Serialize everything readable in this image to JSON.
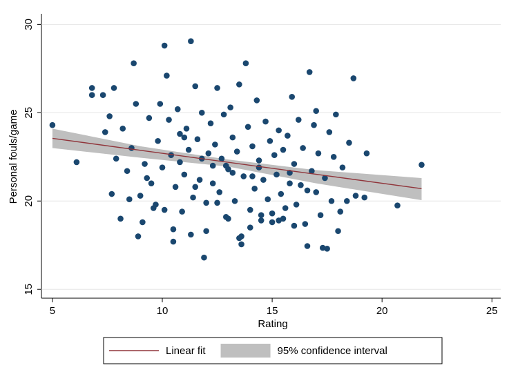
{
  "chart_data": {
    "type": "scatter",
    "xlabel": "Rating",
    "ylabel": "Personal fouls/game",
    "xlim": [
      4.5,
      25.4
    ],
    "ylim": [
      14.5,
      30.6
    ],
    "xticks": [
      5,
      10,
      15,
      20,
      25
    ],
    "yticks": [
      15,
      20,
      25,
      30
    ],
    "grid": true,
    "series": [
      {
        "color": "#1a476f",
        "x": [
          5.0,
          6.1,
          21.8,
          20.7,
          11.3,
          10.1,
          8.7,
          13.8,
          18.7,
          16.7,
          11.9,
          13.6,
          10.5,
          8.9,
          17.3,
          17.5,
          16.6,
          6.8,
          6.8,
          7.3,
          7.8,
          19.3,
          19.2,
          18.8,
          18.4,
          18.0,
          7.7,
          8.1,
          8.5,
          7.4,
          7.6,
          7.9,
          8.2,
          8.4,
          8.6,
          8.8,
          9.0,
          9.2,
          9.4,
          9.5,
          9.6,
          9.8,
          9.9,
          10.0,
          10.2,
          10.3,
          10.4,
          10.6,
          10.7,
          10.8,
          10.9,
          11.0,
          11.1,
          11.2,
          11.4,
          11.5,
          11.6,
          11.7,
          11.8,
          12.0,
          12.1,
          12.2,
          12.3,
          12.4,
          12.5,
          12.6,
          12.7,
          12.8,
          12.9,
          13.0,
          13.1,
          13.2,
          13.3,
          13.4,
          13.5,
          13.7,
          13.9,
          14.0,
          14.1,
          14.2,
          14.3,
          14.4,
          14.5,
          14.6,
          14.7,
          14.8,
          14.9,
          15.0,
          15.1,
          15.2,
          15.3,
          15.4,
          15.5,
          15.6,
          15.7,
          15.8,
          15.9,
          16.0,
          16.1,
          16.2,
          16.3,
          16.4,
          16.5,
          16.8,
          16.9,
          17.0,
          17.1,
          17.2,
          17.4,
          17.6,
          17.7,
          17.8,
          17.9,
          18.1,
          18.2,
          18.5,
          9.1,
          9.7,
          10.5,
          11.0,
          11.5,
          12.0,
          12.5,
          13.0,
          13.5,
          14.0,
          14.5,
          15.0,
          15.5,
          16.0,
          12.3,
          11.8,
          13.2,
          14.4,
          10.8,
          15.8,
          9.3,
          12.9,
          14.1,
          16.6,
          11.3,
          13.6,
          10.1,
          15.3,
          17.0
        ],
        "values": [
          24.3,
          22.2,
          22.05,
          19.75,
          29.05,
          28.8,
          27.8,
          27.8,
          26.95,
          27.3,
          16.8,
          17.55,
          17.7,
          18.0,
          17.35,
          17.3,
          17.45,
          26.4,
          26.0,
          26.0,
          26.4,
          22.7,
          20.2,
          20.3,
          20.0,
          18.3,
          20.4,
          19.0,
          20.1,
          23.9,
          24.8,
          22.4,
          24.1,
          21.7,
          23.0,
          25.5,
          20.3,
          22.1,
          24.7,
          21.0,
          19.6,
          23.4,
          25.5,
          21.9,
          27.1,
          24.6,
          22.6,
          20.8,
          25.2,
          23.8,
          19.4,
          21.5,
          24.1,
          22.9,
          20.2,
          26.5,
          23.5,
          21.2,
          25.0,
          19.9,
          22.7,
          24.4,
          21.0,
          23.2,
          26.4,
          20.5,
          22.4,
          24.9,
          19.1,
          21.8,
          25.3,
          23.6,
          20.0,
          22.8,
          26.6,
          21.4,
          24.2,
          19.5,
          23.1,
          20.7,
          25.7,
          22.3,
          18.9,
          21.2,
          24.5,
          20.1,
          23.4,
          19.3,
          22.6,
          21.5,
          24.0,
          20.4,
          22.9,
          19.6,
          23.7,
          21.0,
          25.9,
          22.1,
          19.8,
          24.6,
          20.9,
          23.0,
          18.7,
          21.7,
          24.3,
          20.5,
          22.7,
          19.2,
          21.3,
          23.9,
          20.0,
          22.5,
          24.9,
          19.4,
          21.9,
          23.3,
          18.8,
          19.8,
          18.4,
          23.6,
          20.8,
          18.3,
          19.9,
          19.0,
          17.9,
          18.5,
          19.2,
          18.8,
          19.0,
          18.6,
          22.0,
          22.4,
          21.6,
          21.9,
          22.2,
          21.6,
          21.3,
          22.0,
          21.4,
          20.6,
          18.1,
          18.0,
          19.5,
          18.9,
          25.1
        ]
      },
      {
        "name": "Linear fit",
        "color": "#90353b",
        "x": [
          5,
          21.8
        ],
        "values": [
          23.55,
          20.7
        ]
      },
      {
        "name": "95% confidence interval",
        "color": "#bfbfbf",
        "x": [
          5,
          9,
          13,
          17,
          21.8
        ],
        "upper": [
          24.1,
          23.1,
          22.35,
          21.75,
          21.3
        ],
        "lower": [
          23.0,
          22.45,
          21.95,
          21.0,
          20.05
        ]
      }
    ]
  }
}
